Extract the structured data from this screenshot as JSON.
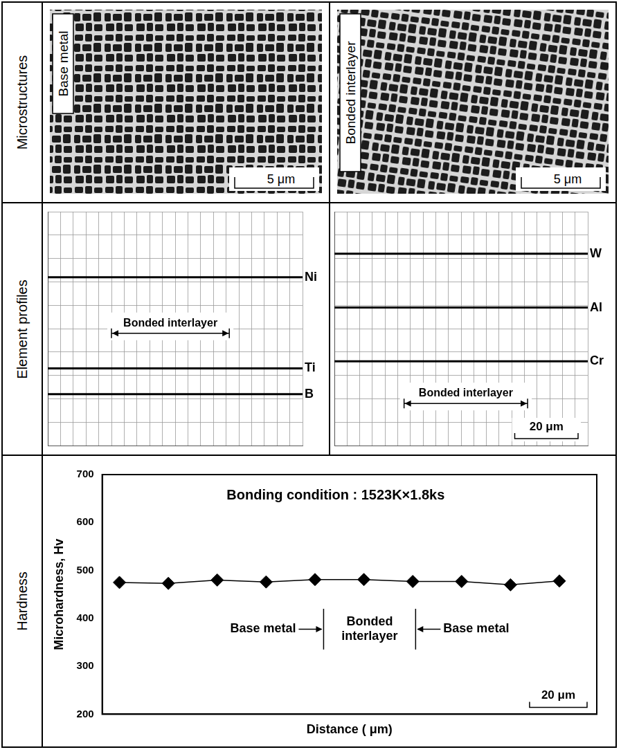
{
  "row_labels": [
    "Microstructures",
    "Element profiles",
    "Hardness"
  ],
  "microstructures": [
    {
      "label": "Base metal",
      "scale_bar": "5 μm"
    },
    {
      "label": "Bonded interlayer",
      "scale_bar": "5 μm"
    }
  ],
  "chart_data": [
    {
      "type": "line",
      "x": [
        0,
        80
      ],
      "series": [
        {
          "name": "Ni",
          "color": "#000000",
          "values": [
            72,
            72
          ]
        },
        {
          "name": "Ti",
          "color": "#000000",
          "values": [
            33,
            33
          ]
        },
        {
          "name": "B",
          "color": "#000000",
          "values": [
            22,
            22
          ]
        }
      ],
      "xlim": [
        0,
        80
      ],
      "ylim": [
        0,
        100
      ],
      "xticks": [
        0,
        4,
        8,
        12,
        16,
        20,
        24,
        28,
        32,
        36,
        40,
        44,
        48,
        52,
        56,
        60,
        64,
        68,
        72,
        76,
        80
      ],
      "yticks": [
        0,
        10,
        20,
        30,
        40,
        50,
        60,
        70,
        80,
        90,
        100
      ],
      "grid": true,
      "tick_labels": false,
      "annotations": [
        {
          "text": "Bonded interlayer",
          "x": [
            20,
            57
          ],
          "y": 48
        }
      ]
    },
    {
      "type": "line",
      "x": [
        0,
        80
      ],
      "series": [
        {
          "name": "W",
          "color": "#000000",
          "values": [
            82,
            82
          ]
        },
        {
          "name": "Al",
          "color": "#000000",
          "values": [
            59,
            59
          ]
        },
        {
          "name": "Cr",
          "color": "#000000",
          "values": [
            36,
            36
          ]
        }
      ],
      "xlim": [
        0,
        80
      ],
      "ylim": [
        0,
        100
      ],
      "xticks": [
        0,
        4,
        8,
        12,
        16,
        20,
        24,
        28,
        32,
        36,
        40,
        44,
        48,
        52,
        56,
        60,
        64,
        68,
        72,
        76,
        80
      ],
      "yticks": [
        0,
        10,
        20,
        30,
        40,
        50,
        60,
        70,
        80,
        90,
        100
      ],
      "grid": true,
      "tick_labels": false,
      "annotations": [
        {
          "text": "Bonded interlayer",
          "x": [
            22,
            61
          ],
          "y": 18
        }
      ],
      "scale_bar": {
        "length": 20,
        "label": "20 μm"
      }
    },
    {
      "type": "line",
      "title": "Bonding condition : 1523K×1.8ks",
      "x_label": "Distance ( μm)",
      "y_label": "Microhardness, Hv",
      "x": [
        6,
        23,
        40,
        57,
        74,
        91,
        108,
        125,
        142,
        159
      ],
      "values": [
        475,
        473,
        480,
        476,
        481,
        481,
        477,
        477,
        470,
        478
      ],
      "color": "#000000",
      "marker": "diamond",
      "xlim": [
        0,
        172
      ],
      "ylim": [
        200,
        700
      ],
      "yticks": [
        200,
        300,
        400,
        500,
        600,
        700
      ],
      "grid": false,
      "tick_labels": "y",
      "boundaries": [
        77,
        109
      ],
      "regions": [
        "Base metal",
        "Bonded interlayer",
        "Base metal"
      ],
      "scale_bar": {
        "length": 20,
        "label": "20 μm"
      }
    }
  ]
}
